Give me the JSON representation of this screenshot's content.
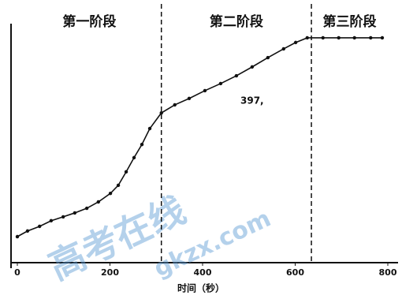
{
  "chart_data": {
    "type": "line",
    "xlabel": "时间（秒）",
    "stages": [
      "第一阶段",
      "第二阶段",
      "第三阶段"
    ],
    "stage_boundaries": [
      311,
      635
    ],
    "annotation": "397,",
    "watermark": [
      "高考在线",
      "gkzx.com"
    ],
    "x": [
      0,
      22,
      48,
      73,
      99,
      124,
      150,
      175,
      201,
      218,
      235,
      252,
      269,
      286,
      311,
      340,
      371,
      405,
      439,
      473,
      507,
      541,
      575,
      601,
      626,
      660,
      694,
      728,
      763,
      788
    ],
    "series": [
      {
        "color": "#111111",
        "values": [
          12.9,
          15.2,
          17.1,
          19.4,
          21.0,
          22.6,
          24.5,
          27.1,
          30.6,
          33.9,
          39.4,
          45.2,
          50.6,
          57.1,
          63.5,
          66.8,
          69.4,
          72.6,
          75.5,
          78.7,
          82.3,
          86.1,
          89.7,
          92.3,
          94.2,
          94.2,
          94.2,
          94.2,
          94.2,
          94.2
        ]
      }
    ],
    "xlim": [
      0,
      800
    ],
    "xticks": [
      0,
      200,
      400,
      600,
      800
    ],
    "ylim": [
      0,
      100
    ]
  }
}
